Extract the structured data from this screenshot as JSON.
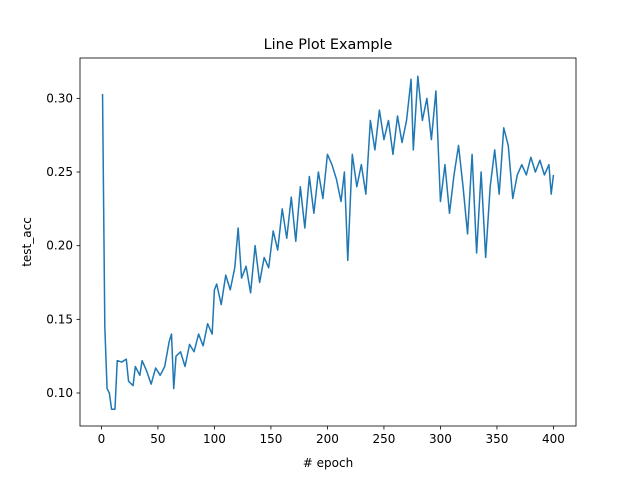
{
  "chart_data": {
    "type": "line",
    "title": "Line Plot Example",
    "xlabel": "# epoch",
    "ylabel": "test_acc",
    "color": "#1f77b4",
    "x": [
      1,
      3,
      5,
      7,
      9,
      12,
      14,
      18,
      22,
      24,
      28,
      30,
      34,
      36,
      40,
      44,
      48,
      52,
      56,
      60,
      62,
      64,
      66,
      70,
      74,
      78,
      82,
      86,
      90,
      94,
      98,
      100,
      102,
      106,
      110,
      114,
      118,
      121,
      124,
      128,
      132,
      136,
      140,
      144,
      148,
      152,
      156,
      160,
      164,
      168,
      172,
      176,
      180,
      184,
      188,
      192,
      196,
      200,
      204,
      208,
      212,
      215,
      218,
      222,
      226,
      230,
      234,
      238,
      242,
      246,
      250,
      254,
      258,
      262,
      266,
      270,
      274,
      276,
      280,
      284,
      288,
      292,
      296,
      300,
      304,
      308,
      312,
      316,
      320,
      324,
      328,
      332,
      336,
      340,
      344,
      348,
      352,
      356,
      360,
      364,
      368,
      372,
      376,
      380,
      384,
      388,
      392,
      396,
      398,
      400
    ],
    "values": [
      0.303,
      0.145,
      0.103,
      0.1,
      0.089,
      0.089,
      0.122,
      0.121,
      0.123,
      0.108,
      0.105,
      0.118,
      0.112,
      0.122,
      0.115,
      0.106,
      0.117,
      0.112,
      0.118,
      0.135,
      0.14,
      0.103,
      0.125,
      0.128,
      0.118,
      0.133,
      0.128,
      0.14,
      0.132,
      0.147,
      0.14,
      0.17,
      0.174,
      0.16,
      0.18,
      0.17,
      0.185,
      0.212,
      0.178,
      0.186,
      0.168,
      0.2,
      0.175,
      0.192,
      0.185,
      0.21,
      0.197,
      0.225,
      0.205,
      0.233,
      0.203,
      0.24,
      0.212,
      0.247,
      0.222,
      0.25,
      0.232,
      0.262,
      0.255,
      0.245,
      0.23,
      0.25,
      0.19,
      0.262,
      0.24,
      0.255,
      0.235,
      0.285,
      0.265,
      0.292,
      0.272,
      0.285,
      0.262,
      0.288,
      0.27,
      0.285,
      0.313,
      0.265,
      0.315,
      0.285,
      0.3,
      0.272,
      0.305,
      0.23,
      0.255,
      0.222,
      0.248,
      0.268,
      0.24,
      0.208,
      0.262,
      0.195,
      0.25,
      0.192,
      0.24,
      0.265,
      0.235,
      0.28,
      0.268,
      0.232,
      0.248,
      0.255,
      0.248,
      0.26,
      0.25,
      0.258,
      0.248,
      0.255,
      0.235,
      0.248
    ],
    "xlim": [
      -18.95,
      419.95
    ],
    "xticks": [
      0,
      50,
      100,
      150,
      200,
      250,
      300,
      350,
      400
    ],
    "ylim": [
      0.0776,
      0.3274
    ],
    "yticks": [
      {
        "value": 0.1,
        "label": "0.10"
      },
      0.15,
      {
        "value": 0.2,
        "label": "0.20"
      },
      0.25,
      {
        "value": 0.3,
        "label": "0.30"
      }
    ]
  }
}
